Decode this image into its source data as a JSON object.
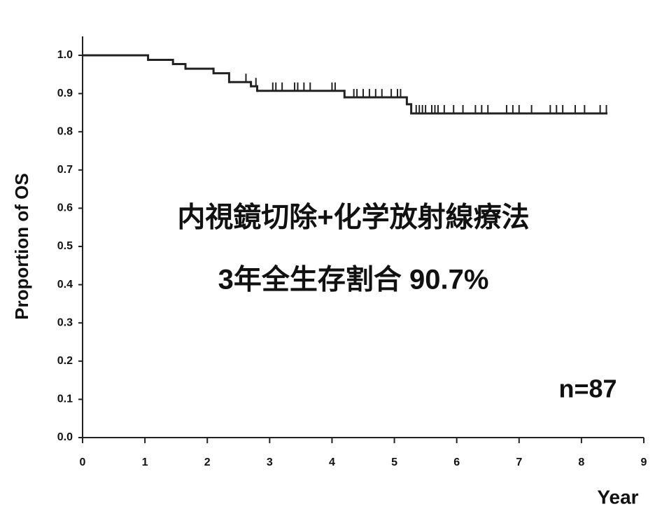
{
  "chart_data": {
    "type": "step",
    "annotations": [
      "内視鏡切除+化学放射線療法",
      "3年全生存割合 90.7%",
      "n=87"
    ],
    "xlabel": "Year",
    "ylabel": "Proportion of OS",
    "x": [
      0,
      1.05,
      1.45,
      1.65,
      2.1,
      2.35,
      2.7,
      2.8,
      4.2,
      5.2,
      5.27,
      8.4
    ],
    "values": [
      1.0,
      0.988,
      0.977,
      0.965,
      0.953,
      0.93,
      0.919,
      0.907,
      0.89,
      0.872,
      0.848,
      0.848
    ],
    "censored": {
      "x": [
        2.62,
        2.78,
        3.05,
        3.1,
        3.2,
        3.4,
        3.45,
        3.55,
        3.65,
        4.0,
        4.05,
        4.35,
        4.4,
        4.5,
        4.6,
        4.7,
        4.8,
        4.95,
        5.05,
        5.1,
        5.35,
        5.4,
        5.45,
        5.5,
        5.6,
        5.65,
        5.7,
        5.8,
        5.95,
        6.1,
        6.3,
        6.4,
        6.5,
        6.8,
        6.9,
        7.0,
        7.2,
        7.5,
        7.6,
        7.7,
        7.9,
        8.05,
        8.3,
        8.4
      ],
      "values": [
        0.93,
        0.919,
        0.907,
        0.907,
        0.907,
        0.907,
        0.907,
        0.907,
        0.907,
        0.907,
        0.907,
        0.89,
        0.89,
        0.89,
        0.89,
        0.89,
        0.89,
        0.89,
        0.89,
        0.89,
        0.848,
        0.848,
        0.848,
        0.848,
        0.848,
        0.848,
        0.848,
        0.848,
        0.848,
        0.848,
        0.848,
        0.848,
        0.848,
        0.848,
        0.848,
        0.848,
        0.848,
        0.848,
        0.848,
        0.848,
        0.848,
        0.848,
        0.848,
        0.848
      ]
    },
    "color": "#222222",
    "xlim": [
      0,
      9
    ],
    "xticks": [
      0,
      1,
      2,
      3,
      4,
      5,
      6,
      7,
      8,
      9
    ],
    "ylim": [
      0,
      1
    ],
    "yticks": [
      {
        "value": 0,
        "label": "0.0"
      },
      0.1,
      0.2,
      0.3,
      0.4,
      0.5,
      0.6,
      0.7,
      0.8,
      0.9,
      {
        "value": 1,
        "label": "1.0"
      }
    ],
    "grid": false
  }
}
